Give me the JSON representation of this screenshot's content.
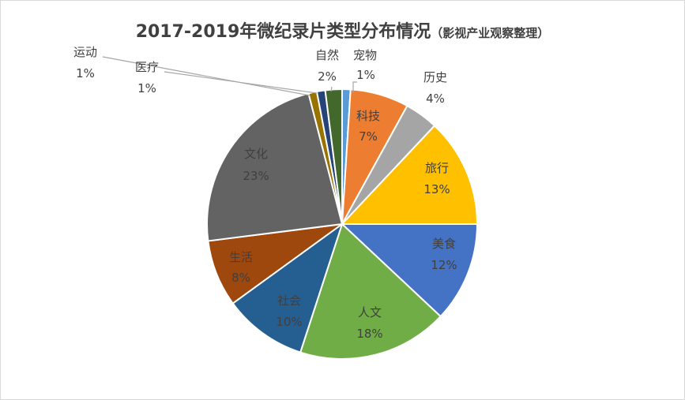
{
  "chart_data": {
    "type": "pie",
    "title": "2017-2019年微纪录片类型分布情况",
    "subtitle": "（影视产业观察整理）",
    "slices": [
      {
        "label": "宠物",
        "value": 1,
        "value_label": "1%",
        "color": "#5B9BD5"
      },
      {
        "label": "科技",
        "value": 7,
        "value_label": "7%",
        "color": "#ED7D31"
      },
      {
        "label": "历史",
        "value": 4,
        "value_label": "4%",
        "color": "#A5A5A5"
      },
      {
        "label": "旅行",
        "value": 13,
        "value_label": "13%",
        "color": "#FFC000"
      },
      {
        "label": "美食",
        "value": 12,
        "value_label": "12%",
        "color": "#4472C4"
      },
      {
        "label": "人文",
        "value": 18,
        "value_label": "18%",
        "color": "#70AD47"
      },
      {
        "label": "社会",
        "value": 10,
        "value_label": "10%",
        "color": "#255E91"
      },
      {
        "label": "生活",
        "value": 8,
        "value_label": "8%",
        "color": "#9E480E"
      },
      {
        "label": "文化",
        "value": 23,
        "value_label": "23%",
        "color": "#636363"
      },
      {
        "label": "运动",
        "value": 1,
        "value_label": "1%",
        "color": "#997300"
      },
      {
        "label": "医疗",
        "value": 1,
        "value_label": "1%",
        "color": "#264478"
      },
      {
        "label": "自然",
        "value": 2,
        "value_label": "2%",
        "color": "#43682B"
      }
    ]
  }
}
